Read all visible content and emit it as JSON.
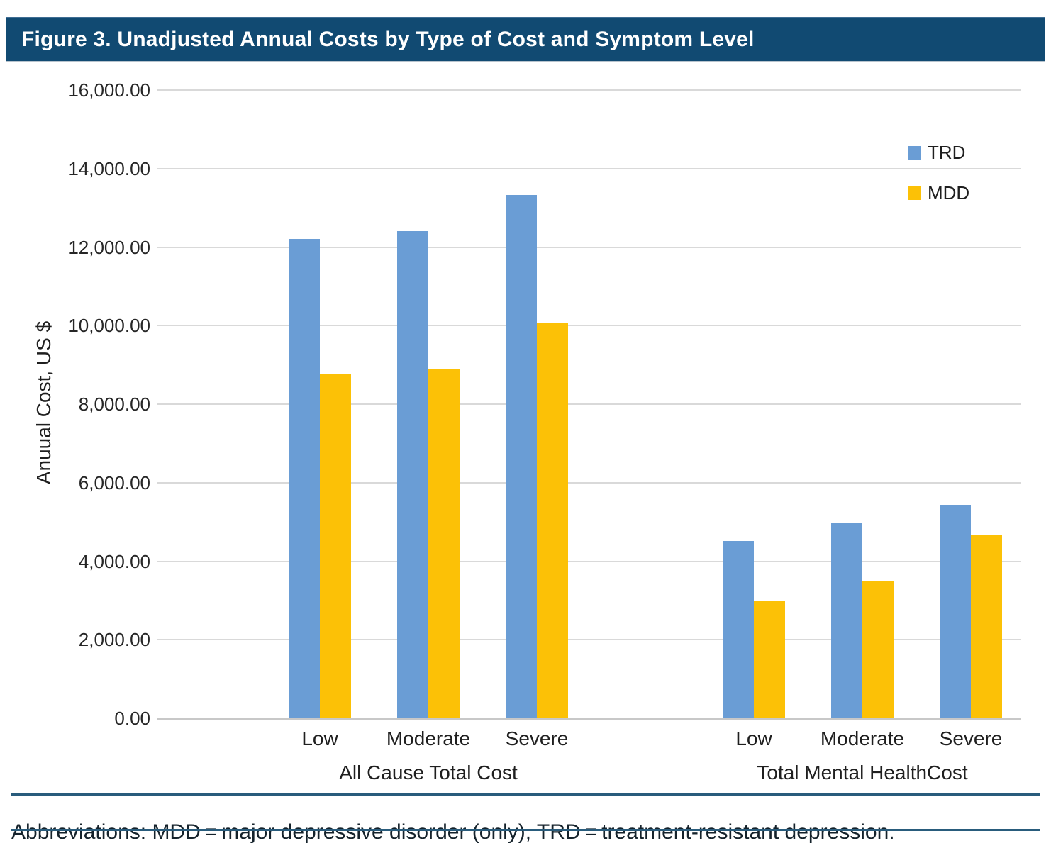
{
  "header": {
    "title": "Figure 3. Unadjusted Annual Costs by Type of Cost and Symptom Level"
  },
  "chart_data": {
    "type": "bar",
    "title": "Figure 3. Unadjusted Annual Costs by Type of Cost and Symptom Level",
    "ylabel": "Anuual Cost, US $",
    "xlabel": "",
    "ylim": [
      0,
      16000
    ],
    "ytick_step": 2000,
    "yticks_top_to_bottom": [
      "16,000.00",
      "14,000.00",
      "12,000.00",
      "10,000.00",
      "8,000.00",
      "6,000.00",
      "4,000.00",
      "2,000.00",
      "0.00"
    ],
    "grid": true,
    "legend_position": "upper-right",
    "series": [
      {
        "name": "TRD",
        "color": "#6A9DD5"
      },
      {
        "name": "MDD",
        "color": "#FCC106"
      }
    ],
    "groups": [
      {
        "label": "All Cause Total Cost",
        "categories": [
          "Low",
          "Moderate",
          "Severe"
        ],
        "values": {
          "TRD": [
            12200,
            12400,
            13320
          ],
          "MDD": [
            8750,
            8890,
            10080
          ]
        }
      },
      {
        "label": "Total Mental HealthCost",
        "categories": [
          "Low",
          "Moderate",
          "Severe"
        ],
        "values": {
          "TRD": [
            4510,
            4960,
            5430
          ],
          "MDD": [
            3000,
            3500,
            4660
          ]
        }
      }
    ]
  },
  "footer": {
    "text": "Abbreviations: MDD = major depressive disorder (only), TRD = treatment-resistant depression."
  },
  "colors": {
    "title_band": "#114A72",
    "footer_rule": "#295C7C",
    "gridline": "#D9D9D9",
    "axis_line": "#C8C8C8",
    "trd_bar": "#6A9DD5",
    "mdd_bar": "#FCC106",
    "text": "#1F1F1F"
  }
}
